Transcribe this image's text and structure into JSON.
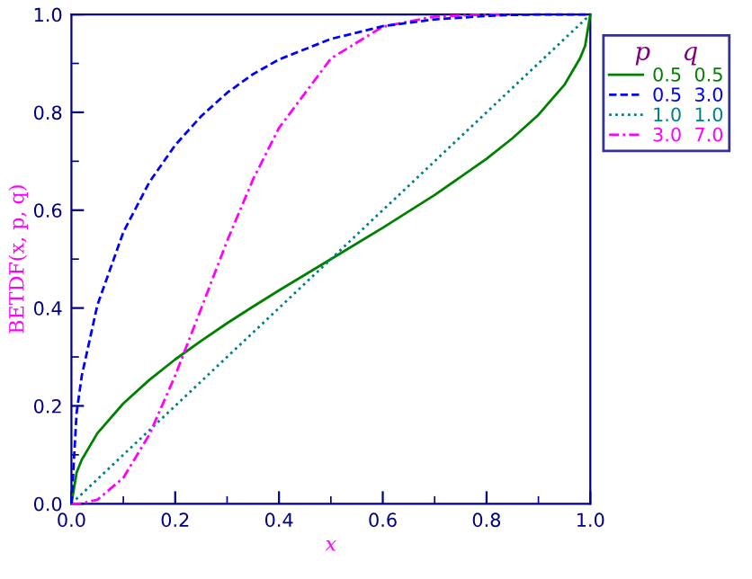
{
  "chart_data": {
    "type": "line",
    "xlabel": "x",
    "ylabel": "BETDF(x, p, q)",
    "legend_title": "p    q",
    "legend": "right",
    "x": [
      0,
      0.01,
      0.02,
      0.05,
      0.1,
      0.15,
      0.2,
      0.25,
      0.3,
      0.35,
      0.4,
      0.5,
      0.6,
      0.7,
      0.8,
      0.85,
      0.9,
      0.95,
      0.98,
      0.99,
      1
    ],
    "series": [
      {
        "name": "0.5  0.5",
        "color": "#008000",
        "line_style": "solid",
        "values": [
          0,
          0.064,
          0.09,
          0.144,
          0.205,
          0.253,
          0.295,
          0.333,
          0.369,
          0.403,
          0.436,
          0.5,
          0.564,
          0.631,
          0.705,
          0.747,
          0.795,
          0.856,
          0.91,
          0.936,
          1
        ]
      },
      {
        "name": "0.5  3.0",
        "color": "#0000ff",
        "line_style": "dashed",
        "values": [
          0,
          0.186,
          0.262,
          0.406,
          0.555,
          0.657,
          0.733,
          0.792,
          0.84,
          0.878,
          0.908,
          0.95,
          0.976,
          0.99,
          0.997,
          0.999,
          1,
          1,
          1,
          1,
          1
        ]
      },
      {
        "name": "1.0  1.0",
        "color": "#008080",
        "line_style": "dotted",
        "values": [
          0,
          0.01,
          0.02,
          0.05,
          0.1,
          0.15,
          0.2,
          0.25,
          0.3,
          0.35,
          0.4,
          0.5,
          0.6,
          0.7,
          0.8,
          0.85,
          0.9,
          0.95,
          0.98,
          0.99,
          1
        ]
      },
      {
        "name": "3.0  7.0",
        "color": "#ff00ff",
        "line_style": "dashdot",
        "values": [
          0,
          0,
          0.001,
          0.008,
          0.053,
          0.141,
          0.262,
          0.399,
          0.537,
          0.663,
          0.768,
          0.91,
          0.975,
          0.996,
          1,
          1,
          null,
          null,
          null,
          null,
          null
        ]
      }
    ],
    "xlim": [
      0,
      1
    ],
    "ylim": [
      0,
      1
    ],
    "xticks": [
      {
        "value": 0,
        "label": "0.0"
      },
      0.2,
      0.4,
      0.6,
      0.8,
      {
        "value": 1,
        "label": "1.0"
      }
    ],
    "yticks": [
      {
        "value": 0,
        "label": "0.0"
      },
      0.2,
      0.4,
      0.6,
      0.8,
      {
        "value": 1,
        "label": "1.0"
      }
    ],
    "grid": false
  }
}
